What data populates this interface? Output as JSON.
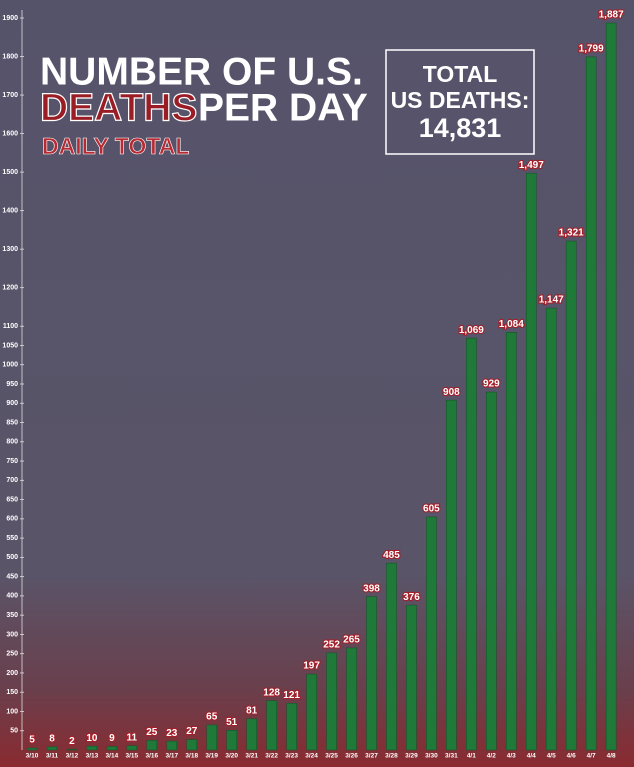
{
  "chart_data": {
    "type": "bar",
    "title": {
      "line1": "NUMBER OF U.S.",
      "highlight": "DEATHS",
      "line2_rest": "PER DAY"
    },
    "subtitle": "DAILY TOTAL",
    "annotation": [
      "TOTAL",
      "US DEATHS:",
      "14,831"
    ],
    "categories": [
      "3/10",
      "3/11",
      "3/12",
      "3/13",
      "3/14",
      "3/15",
      "3/16",
      "3/17",
      "3/18",
      "3/19",
      "3/20",
      "3/21",
      "3/22",
      "3/23",
      "3/24",
      "3/25",
      "3/26",
      "3/27",
      "3/28",
      "3/29",
      "3/30",
      "3/31",
      "4/1",
      "4/2",
      "4/3",
      "4/4",
      "4/5",
      "4/6",
      "4/7",
      "4/8"
    ],
    "values": [
      5,
      8,
      2,
      10,
      9,
      11,
      25,
      23,
      27,
      65,
      51,
      81,
      128,
      121,
      197,
      252,
      265,
      398,
      485,
      376,
      605,
      908,
      1069,
      929,
      1084,
      1497,
      1147,
      1321,
      1799,
      1887
    ],
    "value_labels": [
      "5",
      "8",
      "2",
      "10",
      "9",
      "11",
      "25",
      "23",
      "27",
      "65",
      "51",
      "81",
      "128",
      "121",
      "197",
      "252",
      "265",
      "398",
      "485",
      "376",
      "605",
      "908",
      "1,069",
      "929",
      "1,084",
      "1,497",
      "1,147",
      "1,321",
      "1,799",
      "1,887"
    ],
    "color": "#1f7a3a",
    "ylim": [
      0,
      1900
    ],
    "yticks": [
      50,
      100,
      150,
      200,
      250,
      300,
      350,
      400,
      450,
      500,
      550,
      600,
      650,
      700,
      750,
      800,
      850,
      900,
      950,
      1000,
      1050,
      1100,
      1200,
      1300,
      1400,
      1500,
      1600,
      1700,
      1800,
      1900
    ]
  }
}
